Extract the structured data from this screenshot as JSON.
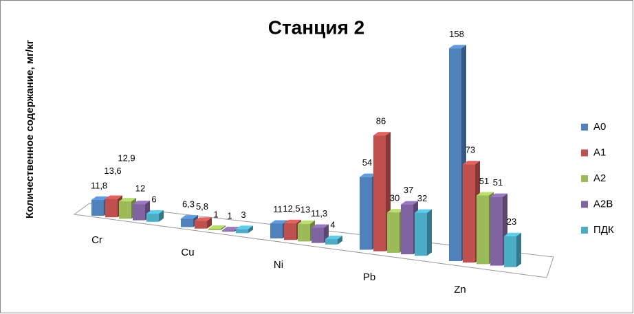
{
  "chart_data": {
    "type": "bar3d",
    "title": "Станция 2",
    "y_label": "Количественное содержание, мг/кг",
    "categories": [
      "Cr",
      "Cu",
      "Ni",
      "Pb",
      "Zn"
    ],
    "series": [
      {
        "name": "А0",
        "color": "#4f81bd",
        "values": [
          11.8,
          6.3,
          11,
          54,
          158
        ],
        "value_labels": [
          "11,8",
          "6,3",
          "11",
          "54",
          "158"
        ]
      },
      {
        "name": "А1",
        "color": "#c0504d",
        "values": [
          13.6,
          5.8,
          12.5,
          86,
          73
        ],
        "value_labels": [
          "13,6",
          "5,8",
          "12,5",
          "86",
          "73"
        ]
      },
      {
        "name": "А2",
        "color": "#9bbb59",
        "values": [
          12.9,
          1,
          13,
          30,
          51
        ],
        "value_labels": [
          "12,9",
          "1",
          "13",
          "30",
          "51"
        ]
      },
      {
        "name": "А2В",
        "color": "#8064a2",
        "values": [
          12,
          1,
          11.3,
          37,
          51
        ],
        "value_labels": [
          "12",
          "1",
          "11,3",
          "37",
          "51"
        ]
      },
      {
        "name": "ПДК",
        "color": "#4bacc6",
        "values": [
          6,
          3,
          4,
          32,
          23
        ],
        "value_labels": [
          "6",
          "3",
          "4",
          "32",
          "23"
        ]
      }
    ],
    "legend": "right"
  }
}
